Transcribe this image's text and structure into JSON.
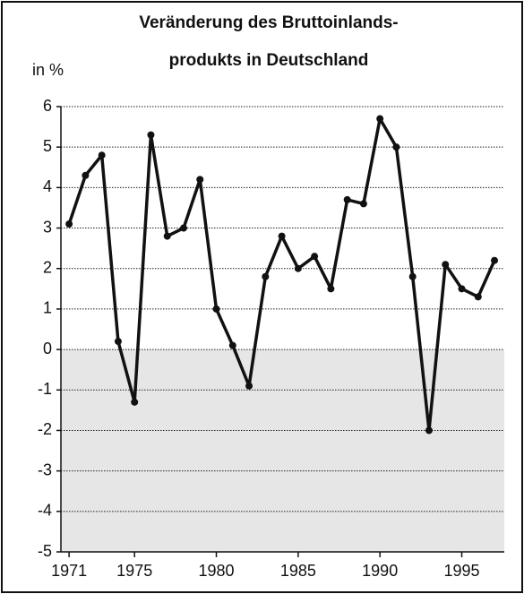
{
  "chart_data": {
    "type": "line",
    "title_lines": [
      "Veränderung des Bruttoinlands-",
      "produkts in Deutschland"
    ],
    "y_label": "in %",
    "x": [
      1971,
      1972,
      1973,
      1974,
      1975,
      1976,
      1977,
      1978,
      1979,
      1980,
      1981,
      1982,
      1983,
      1984,
      1985,
      1986,
      1987,
      1988,
      1989,
      1990,
      1991,
      1992,
      1993,
      1994,
      1995,
      1996,
      1997
    ],
    "series": [
      {
        "color": "#111111",
        "values": [
          3.1,
          4.3,
          4.8,
          0.2,
          -1.3,
          5.3,
          2.8,
          3.0,
          4.2,
          1.0,
          0.1,
          -0.9,
          1.8,
          2.8,
          2.0,
          2.3,
          1.5,
          3.7,
          3.6,
          5.7,
          5.0,
          1.8,
          -2.0,
          2.1,
          1.5,
          1.3,
          2.2
        ]
      }
    ],
    "xlim": [
      1970.5,
      1997.6
    ],
    "xticks": [
      1971,
      1975,
      1980,
      1985,
      1990,
      1995
    ],
    "ylim": [
      -5,
      6
    ],
    "yticks": [
      6,
      5,
      4,
      3,
      2,
      1,
      0,
      -1,
      -2,
      -3,
      -4,
      -5
    ],
    "grid": true,
    "negative_fill": "#e6e6e6"
  }
}
